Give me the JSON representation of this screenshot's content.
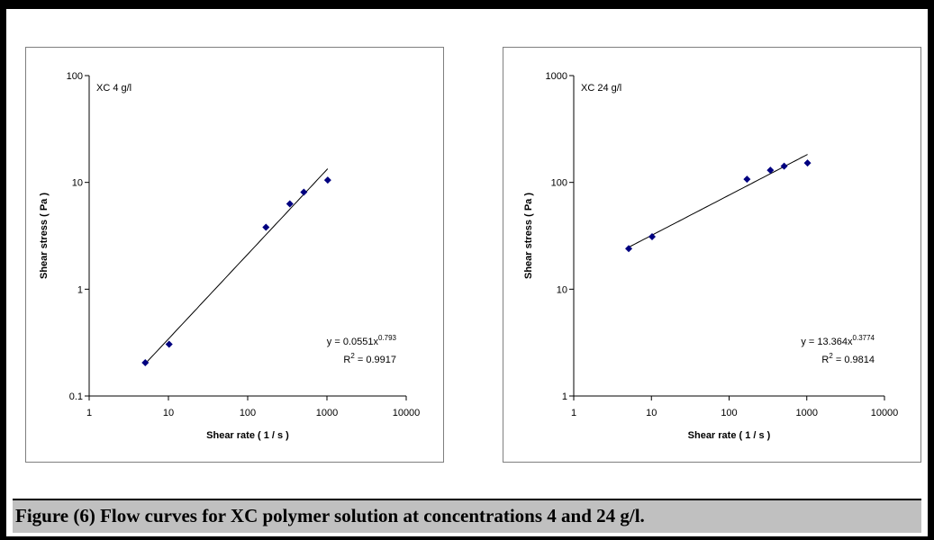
{
  "caption": "Figure (6) Flow curves for XC polymer solution at concentrations 4 and 24 g/l.",
  "chart_data": [
    {
      "type": "scatter",
      "label": "XC  4 g/l",
      "xlabel": "Shear rate ( 1 / s )",
      "ylabel": "Shear stress ( Pa )",
      "xscale": "log",
      "yscale": "log",
      "xlim": [
        1,
        10000
      ],
      "ylim": [
        0.1,
        100
      ],
      "xticks": [
        "1",
        "10",
        "100",
        "1000",
        "10000"
      ],
      "yticks": [
        "0.1",
        "1",
        "10",
        "100"
      ],
      "marker_color": "#000080",
      "points": {
        "x": [
          5.1,
          10.2,
          170,
          340,
          511,
          1022
        ],
        "y": [
          0.205,
          0.305,
          3.8,
          6.3,
          8.1,
          10.5
        ]
      },
      "trendline": {
        "type": "power",
        "a": 0.0551,
        "b": 0.793,
        "x_range": [
          5.1,
          1022
        ]
      },
      "equation": {
        "prefix": "y = 0.0551x",
        "exponent": "0.793",
        "r2_label": "R",
        "r2_sup": "2",
        "r2_value": " = 0.9917"
      },
      "grid": false,
      "legend": "none"
    },
    {
      "type": "scatter",
      "label": "XC  24 g/l",
      "xlabel": "Shear rate ( 1 / s )",
      "ylabel": "Shear stress ( Pa )",
      "xscale": "log",
      "yscale": "log",
      "xlim": [
        1,
        10000
      ],
      "ylim": [
        1,
        1000
      ],
      "xticks": [
        "1",
        "10",
        "100",
        "1000",
        "10000"
      ],
      "yticks": [
        "1",
        "10",
        "100",
        "1000"
      ],
      "marker_color": "#000080",
      "points": {
        "x": [
          5.1,
          10.2,
          170,
          340,
          511,
          1022
        ],
        "y": [
          24,
          31,
          107,
          130,
          142,
          152
        ]
      },
      "trendline": {
        "type": "power",
        "a": 13.364,
        "b": 0.3774,
        "x_range": [
          5.1,
          1022
        ]
      },
      "equation": {
        "prefix": "y = 13.364x",
        "exponent": "0.3774",
        "r2_label": "R",
        "r2_sup": "2",
        "r2_value": " = 0.9814"
      },
      "grid": false,
      "legend": "none"
    }
  ]
}
